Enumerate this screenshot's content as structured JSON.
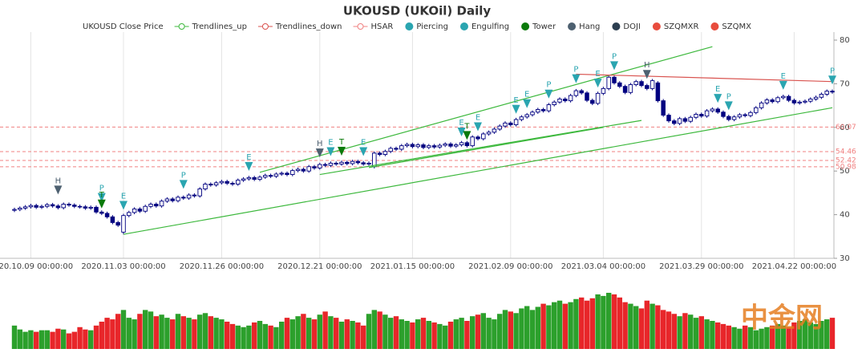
{
  "chart_data": {
    "type": "candlestick",
    "title": "UKOUSD (UKOil) Daily",
    "watermark": "中金网",
    "categories": [
      null,
      null,
      null,
      "2020.10.09 00:00:00",
      null,
      null,
      null,
      null,
      null,
      null,
      null,
      null,
      null,
      null,
      null,
      null,
      null,
      null,
      null,
      null,
      "2020.11.03 00:00:00",
      null,
      null,
      null,
      null,
      null,
      null,
      null,
      null,
      null,
      null,
      null,
      null,
      null,
      null,
      null,
      null,
      null,
      "2020.11.26 00:00:00",
      null,
      null,
      null,
      null,
      null,
      null,
      null,
      null,
      null,
      null,
      null,
      null,
      null,
      null,
      null,
      null,
      null,
      "2020.12.21 00:00:00",
      null,
      null,
      null,
      null,
      null,
      null,
      null,
      null,
      null,
      null,
      null,
      null,
      null,
      null,
      null,
      null,
      "2021.01.15 00:00:00",
      null,
      null,
      null,
      null,
      null,
      null,
      null,
      null,
      null,
      null,
      null,
      null,
      null,
      null,
      null,
      null,
      null,
      "2021.02.09 00:00:00",
      null,
      null,
      null,
      null,
      null,
      null,
      null,
      null,
      null,
      null,
      null,
      null,
      null,
      null,
      null,
      null,
      "2021.03.04 00:00:00",
      null,
      null,
      null,
      null,
      null,
      null,
      null,
      null,
      null,
      null,
      null,
      null,
      null,
      null,
      null,
      null,
      null,
      "2021.03.29 00:00:00",
      null,
      null,
      null,
      null,
      null,
      null,
      null,
      null,
      null,
      null,
      null,
      null,
      null,
      null,
      null,
      null,
      "2021.04.22 00:00:00",
      null,
      null,
      null,
      null,
      null,
      null,
      null
    ],
    "ylim": [
      30,
      80
    ],
    "yticks": [
      30,
      40,
      50,
      60,
      70,
      80
    ],
    "candles": {
      "name": "UKOUSD Close Price",
      "color": "#000080",
      "open": [
        41.0,
        41.2,
        41.5,
        41.8,
        42.1,
        41.7,
        41.9,
        42.3,
        42.0,
        41.6,
        42.4,
        42.2,
        41.9,
        41.8,
        41.5,
        41.7,
        40.6,
        40.3,
        39.5,
        38.2,
        36.0,
        39.8,
        40.5,
        41.3,
        40.8,
        41.9,
        42.4,
        42.0,
        43.1,
        43.6,
        43.2,
        44.0,
        43.8,
        44.5,
        44.3,
        45.9,
        47.0,
        46.8,
        47.3,
        47.6,
        47.2,
        47.0,
        47.9,
        48.2,
        48.5,
        48.1,
        48.6,
        49.0,
        48.8,
        49.3,
        49.5,
        49.2,
        50.1,
        50.4,
        50.0,
        51.0,
        50.7,
        51.5,
        51.3,
        51.8,
        51.6,
        52.0,
        51.7,
        52.2,
        51.9,
        51.6,
        51.0,
        54.1,
        53.8,
        54.5,
        55.2,
        55.0,
        55.8,
        56.1,
        55.6,
        56.0,
        55.4,
        55.8,
        55.5,
        55.9,
        56.2,
        55.7,
        56.0,
        56.5,
        55.8,
        57.8,
        57.4,
        58.5,
        58.9,
        59.6,
        60.3,
        61.0,
        60.6,
        61.8,
        62.4,
        62.9,
        63.5,
        64.1,
        63.8,
        65.2,
        65.8,
        66.5,
        66.1,
        67.3,
        68.4,
        67.9,
        66.2,
        65.5,
        67.8,
        68.9,
        71.5,
        70.2,
        69.4,
        68.0,
        69.8,
        70.5,
        69.6,
        68.9,
        70.2,
        66.1,
        62.8,
        61.5,
        60.9,
        62.0,
        61.4,
        62.3,
        63.0,
        62.6,
        63.8,
        64.2,
        63.5,
        62.5,
        61.8,
        62.4,
        62.9,
        62.7,
        63.4,
        64.5,
        65.6,
        66.3,
        65.9,
        66.8,
        67.1,
        66.2,
        65.6,
        65.8,
        66.0,
        66.5,
        66.9,
        67.6,
        68.3
      ],
      "high": [
        41.6,
        41.9,
        42.2,
        42.5,
        42.5,
        42.3,
        42.7,
        42.7,
        42.4,
        42.8,
        42.8,
        42.6,
        42.3,
        42.2,
        42.1,
        42.1,
        41.0,
        40.7,
        39.9,
        38.6,
        40.2,
        40.9,
        41.7,
        41.7,
        42.3,
        42.8,
        42.8,
        43.5,
        44.0,
        44.0,
        44.4,
        44.4,
        44.9,
        44.9,
        46.3,
        47.4,
        47.4,
        47.7,
        48.0,
        48.0,
        47.6,
        48.3,
        48.6,
        48.9,
        48.9,
        49.0,
        49.4,
        49.4,
        49.7,
        49.9,
        49.9,
        50.5,
        50.8,
        50.8,
        51.4,
        51.4,
        51.9,
        51.9,
        52.2,
        52.2,
        52.4,
        52.4,
        52.6,
        52.6,
        52.3,
        52.2,
        54.5,
        54.5,
        54.9,
        55.6,
        55.6,
        56.2,
        56.5,
        56.5,
        56.4,
        56.4,
        56.2,
        56.2,
        56.3,
        56.6,
        56.6,
        56.4,
        56.9,
        56.9,
        58.2,
        58.2,
        58.9,
        59.3,
        60.0,
        60.7,
        61.4,
        61.4,
        62.2,
        62.8,
        63.3,
        63.9,
        64.5,
        64.5,
        65.6,
        66.2,
        66.9,
        66.9,
        67.7,
        68.8,
        68.8,
        68.3,
        66.6,
        68.2,
        69.3,
        71.9,
        71.9,
        70.6,
        69.8,
        70.2,
        70.9,
        70.9,
        70.0,
        71.1,
        70.6,
        66.5,
        63.2,
        61.9,
        62.4,
        62.4,
        62.7,
        63.4,
        63.4,
        64.2,
        64.6,
        64.6,
        63.9,
        62.9,
        62.8,
        63.3,
        63.3,
        63.8,
        64.9,
        66.0,
        66.7,
        66.7,
        67.2,
        67.5,
        67.5,
        66.6,
        66.2,
        66.4,
        66.9,
        67.3,
        68.0,
        68.7,
        68.7
      ],
      "low": [
        40.6,
        40.8,
        41.1,
        41.4,
        41.3,
        41.3,
        41.5,
        41.6,
        41.2,
        41.2,
        41.8,
        41.5,
        41.4,
        41.1,
        41.1,
        40.2,
        39.9,
        39.1,
        37.8,
        37.2,
        35.5,
        39.4,
        40.1,
        40.4,
        40.4,
        41.5,
        41.6,
        41.6,
        42.7,
        42.8,
        42.8,
        43.4,
        43.4,
        43.9,
        43.9,
        45.5,
        46.4,
        46.4,
        46.9,
        46.8,
        46.6,
        46.6,
        47.5,
        47.8,
        47.7,
        47.7,
        48.2,
        48.4,
        48.4,
        48.9,
        48.8,
        48.8,
        49.7,
        49.6,
        49.6,
        50.3,
        50.3,
        50.9,
        50.9,
        51.2,
        51.2,
        51.3,
        51.3,
        51.5,
        51.2,
        51.2,
        50.6,
        53.4,
        53.4,
        54.1,
        54.6,
        54.6,
        55.4,
        55.2,
        55.2,
        55.0,
        55.0,
        55.1,
        55.1,
        55.5,
        55.3,
        55.3,
        55.6,
        55.4,
        55.4,
        57.0,
        57.0,
        58.1,
        58.5,
        59.2,
        59.9,
        60.2,
        60.2,
        61.4,
        62.0,
        62.5,
        63.1,
        63.4,
        63.4,
        64.8,
        65.4,
        65.7,
        65.7,
        66.9,
        67.5,
        65.8,
        65.1,
        65.1,
        67.4,
        68.5,
        69.8,
        69.0,
        67.6,
        67.6,
        69.4,
        69.2,
        68.5,
        68.5,
        65.7,
        62.4,
        61.1,
        60.5,
        60.5,
        61.0,
        61.0,
        61.9,
        62.2,
        62.2,
        63.4,
        63.1,
        62.1,
        61.4,
        61.4,
        62.0,
        62.3,
        62.3,
        63.0,
        64.1,
        65.2,
        65.5,
        65.5,
        66.4,
        65.8,
        65.2,
        65.2,
        65.4,
        65.6,
        66.1,
        66.5,
        67.2,
        67.7
      ],
      "close": [
        41.2,
        41.5,
        41.8,
        42.1,
        41.7,
        41.9,
        42.3,
        42.0,
        41.6,
        42.4,
        42.2,
        41.9,
        41.8,
        41.5,
        41.7,
        40.6,
        40.3,
        39.5,
        38.2,
        37.6,
        39.8,
        40.5,
        41.3,
        40.8,
        41.9,
        42.4,
        42.0,
        43.1,
        43.6,
        43.2,
        44.0,
        43.8,
        44.5,
        44.3,
        45.9,
        47.0,
        46.8,
        47.3,
        47.6,
        47.2,
        47.0,
        47.9,
        48.2,
        48.5,
        48.1,
        48.6,
        49.0,
        48.8,
        49.3,
        49.5,
        49.2,
        50.1,
        50.4,
        50.0,
        51.0,
        50.7,
        51.5,
        51.3,
        51.8,
        51.6,
        52.0,
        51.7,
        52.2,
        51.9,
        51.6,
        51.8,
        54.1,
        53.8,
        54.5,
        55.2,
        55.0,
        55.8,
        56.1,
        55.6,
        56.0,
        55.4,
        55.8,
        55.5,
        55.9,
        56.2,
        55.7,
        56.0,
        56.5,
        55.8,
        57.8,
        57.4,
        58.5,
        58.9,
        59.6,
        60.3,
        61.0,
        60.6,
        61.8,
        62.4,
        62.9,
        63.5,
        64.1,
        63.8,
        65.2,
        65.8,
        66.5,
        66.1,
        67.3,
        68.4,
        67.9,
        66.2,
        65.5,
        67.8,
        68.9,
        71.5,
        70.2,
        69.4,
        68.0,
        69.8,
        70.5,
        69.6,
        68.9,
        70.7,
        66.1,
        62.8,
        61.5,
        60.9,
        62.0,
        61.4,
        62.3,
        63.0,
        62.6,
        63.8,
        64.2,
        63.5,
        62.5,
        61.8,
        62.4,
        62.9,
        62.7,
        63.4,
        64.5,
        65.6,
        66.3,
        65.9,
        66.8,
        67.1,
        66.2,
        65.6,
        65.8,
        66.0,
        66.5,
        66.9,
        67.6,
        68.3,
        68.1
      ]
    },
    "trendlines": [
      {
        "name": "Trendlines_up",
        "color": "#3cb83c",
        "lines": [
          [
            [
              20,
              35.5
            ],
            [
              150,
              64.5
            ]
          ],
          [
            [
              45,
              49.7
            ],
            [
              128,
              78.5
            ]
          ],
          [
            [
              56,
              49.2
            ],
            [
              115,
              61.6
            ]
          ],
          [
            [
              65,
              50.8
            ],
            [
              108,
              60.0
            ]
          ]
        ]
      },
      {
        "name": "Trendlines_down",
        "color": "#d9534f",
        "lines": [
          [
            [
              103,
              72.2
            ],
            [
              150,
              70.5
            ]
          ]
        ]
      }
    ],
    "hsar": {
      "name": "HSAR",
      "color": "#f08080",
      "values": [
        60.07,
        54.46,
        52.42,
        50.98
      ]
    },
    "signals": [
      {
        "name": "Piercing",
        "color": "#2aa5b0",
        "points": [
          {
            "x": 16,
            "value": 43.3,
            "label": "P"
          },
          {
            "x": 31,
            "value": 46.3,
            "label": "P"
          },
          {
            "x": 98,
            "value": 67.0,
            "label": "P"
          },
          {
            "x": 103,
            "value": 70.5,
            "label": "P"
          },
          {
            "x": 110,
            "value": 73.5,
            "label": "P"
          },
          {
            "x": 131,
            "value": 64.3,
            "label": "P"
          },
          {
            "x": 150,
            "value": 70.2,
            "label": "P"
          }
        ]
      },
      {
        "name": "Engulfing",
        "color": "#2aa5b0",
        "points": [
          {
            "x": 20,
            "value": 41.5,
            "label": "E"
          },
          {
            "x": 43,
            "value": 50.4,
            "label": "E"
          },
          {
            "x": 58,
            "value": 53.8,
            "label": "E"
          },
          {
            "x": 64,
            "value": 53.8,
            "label": "E"
          },
          {
            "x": 82,
            "value": 58.3,
            "label": "E"
          },
          {
            "x": 85,
            "value": 59.5,
            "label": "E"
          },
          {
            "x": 92,
            "value": 63.5,
            "label": "E"
          },
          {
            "x": 94,
            "value": 64.8,
            "label": "E"
          },
          {
            "x": 107,
            "value": 69.5,
            "label": "E"
          },
          {
            "x": 129,
            "value": 66.0,
            "label": "E"
          },
          {
            "x": 141,
            "value": 69.0,
            "label": "E"
          }
        ]
      },
      {
        "name": "Tower",
        "color": "#0a7a0a",
        "points": [
          {
            "x": 16,
            "value": 41.8,
            "label": "T"
          },
          {
            "x": 60,
            "value": 53.9,
            "label": "T"
          },
          {
            "x": 83,
            "value": 57.5,
            "label": "T"
          }
        ]
      },
      {
        "name": "Hang",
        "color": "#4d6070",
        "points": [
          {
            "x": 8,
            "value": 45.0,
            "label": "H"
          },
          {
            "x": 56,
            "value": 53.5,
            "label": "H"
          },
          {
            "x": 116,
            "value": 71.5,
            "label": "H"
          }
        ]
      },
      {
        "name": "DOJI",
        "color": "#2c3e50",
        "points": []
      },
      {
        "name": "SZQMXR",
        "color": "#e84c3d",
        "points": []
      },
      {
        "name": "SZQMX",
        "color": "#e84c3d",
        "points": []
      }
    ],
    "volume": {
      "up_color": "#2ca02c",
      "down_color": "#e8262a",
      "values": [
        30,
        25,
        22,
        24,
        22,
        24,
        24,
        22,
        26,
        25,
        20,
        22,
        28,
        25,
        24,
        30,
        35,
        40,
        38,
        45,
        50,
        40,
        38,
        45,
        50,
        48,
        42,
        44,
        40,
        38,
        45,
        42,
        40,
        38,
        44,
        46,
        42,
        40,
        38,
        35,
        32,
        30,
        28,
        30,
        34,
        36,
        32,
        30,
        28,
        35,
        40,
        38,
        42,
        45,
        40,
        38,
        44,
        48,
        42,
        40,
        35,
        38,
        36,
        34,
        30,
        45,
        50,
        48,
        44,
        40,
        42,
        38,
        36,
        34,
        38,
        40,
        36,
        34,
        32,
        30,
        35,
        38,
        40,
        36,
        42,
        44,
        46,
        40,
        38,
        45,
        50,
        48,
        46,
        52,
        55,
        50,
        54,
        58,
        56,
        60,
        62,
        58,
        60,
        64,
        66,
        62,
        65,
        70,
        68,
        72,
        70,
        66,
        60,
        58,
        55,
        52,
        62,
        58,
        56,
        50,
        48,
        45,
        42,
        46,
        44,
        40,
        42,
        38,
        36,
        34,
        32,
        30,
        28,
        26,
        30,
        28,
        24,
        26,
        28,
        30,
        32,
        30,
        28,
        34,
        36,
        38,
        34,
        32,
        36,
        38,
        40
      ]
    }
  }
}
